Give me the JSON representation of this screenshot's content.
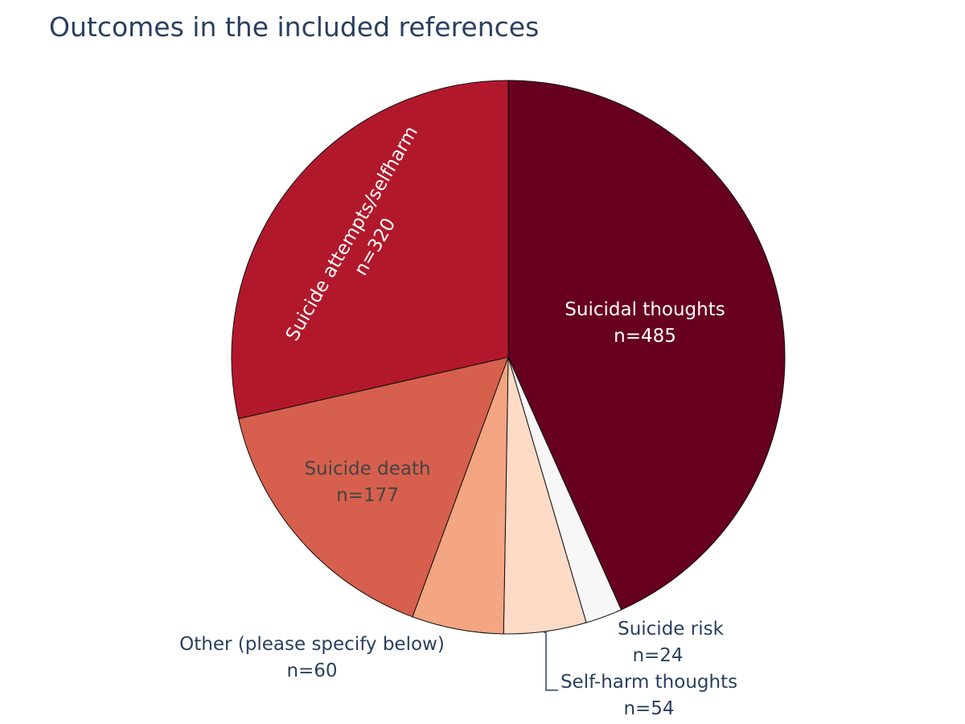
{
  "chart_data": {
    "type": "pie",
    "title": "Outcomes in the included references",
    "slices": [
      {
        "label": "Suicidal thoughts",
        "value": 485,
        "value_text": "n=485",
        "color": "#67001f"
      },
      {
        "label": "Suicide risk",
        "value": 24,
        "value_text": "n=24",
        "color": "#f7f7f7"
      },
      {
        "label": "Self-harm thoughts",
        "value": 54,
        "value_text": "n=54",
        "color": "#fddbc7"
      },
      {
        "label": "Other (please specify below)",
        "value": 60,
        "value_text": "n=60",
        "color": "#f4a582"
      },
      {
        "label": "Suicide death",
        "value": 177,
        "value_text": "n=177",
        "color": "#d6604d"
      },
      {
        "label": "Suicide attempts/selfharm",
        "value": 320,
        "value_text": "n=320",
        "color": "#b2182b"
      }
    ],
    "direction": "clockwise",
    "start": "top",
    "legend": "none"
  }
}
